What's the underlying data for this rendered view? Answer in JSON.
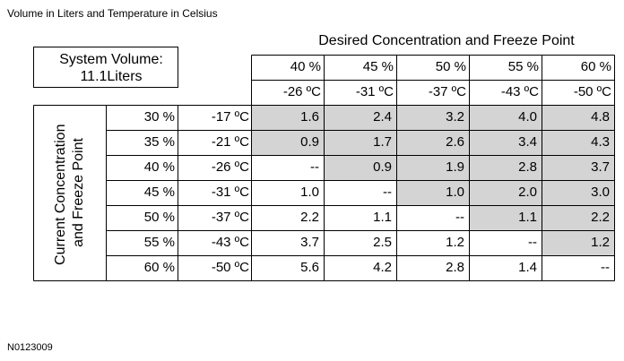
{
  "caption": "Volume in Liters and Temperature in Celsius",
  "table": {
    "column_group_title": "Desired Concentration and Freeze Point",
    "row_group_title": "Current Concentration and Freeze Point",
    "system_volume": {
      "label": "System Volume:",
      "value": "11.1Liters"
    },
    "columns": [
      {
        "concentration": "40 %",
        "temperature": "-26 ºC"
      },
      {
        "concentration": "45 %",
        "temperature": "-31 ºC"
      },
      {
        "concentration": "50 %",
        "temperature": "-37 ºC"
      },
      {
        "concentration": "55 %",
        "temperature": "-43 ºC"
      },
      {
        "concentration": "60 %",
        "temperature": "-50 ºC"
      }
    ],
    "rows": [
      {
        "concentration": "30 %",
        "temperature": "-17 ºC",
        "cells": [
          "1.6",
          "2.4",
          "3.2",
          "4.0",
          "4.8"
        ],
        "shaded": [
          true,
          true,
          true,
          true,
          true
        ]
      },
      {
        "concentration": "35 %",
        "temperature": "-21 ºC",
        "cells": [
          "0.9",
          "1.7",
          "2.6",
          "3.4",
          "4.3"
        ],
        "shaded": [
          true,
          true,
          true,
          true,
          true
        ]
      },
      {
        "concentration": "40 %",
        "temperature": "-26 ºC",
        "cells": [
          "--",
          "0.9",
          "1.9",
          "2.8",
          "3.7"
        ],
        "shaded": [
          false,
          true,
          true,
          true,
          true
        ]
      },
      {
        "concentration": "45 %",
        "temperature": "-31 ºC",
        "cells": [
          "1.0",
          "--",
          "1.0",
          "2.0",
          "3.0"
        ],
        "shaded": [
          false,
          false,
          true,
          true,
          true
        ]
      },
      {
        "concentration": "50 %",
        "temperature": "-37 ºC",
        "cells": [
          "2.2",
          "1.1",
          "--",
          "1.1",
          "2.2"
        ],
        "shaded": [
          false,
          false,
          false,
          true,
          true
        ]
      },
      {
        "concentration": "55 %",
        "temperature": "-43 ºC",
        "cells": [
          "3.7",
          "2.5",
          "1.2",
          "--",
          "1.2"
        ],
        "shaded": [
          false,
          false,
          false,
          false,
          true
        ]
      },
      {
        "concentration": "60 %",
        "temperature": "-50 ºC",
        "cells": [
          "5.6",
          "4.2",
          "2.8",
          "1.4",
          "--"
        ],
        "shaded": [
          false,
          false,
          false,
          false,
          false
        ]
      }
    ]
  },
  "figure_id": "N0123009"
}
